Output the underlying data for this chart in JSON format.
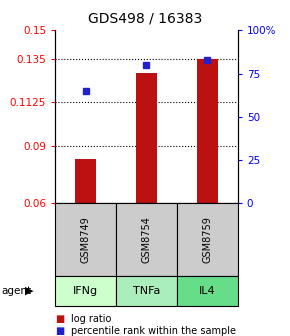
{
  "title": "GDS498 / 16383",
  "samples": [
    "GSM8749",
    "GSM8754",
    "GSM8759"
  ],
  "agents": [
    "IFNg",
    "TNFa",
    "IL4"
  ],
  "bar_values": [
    0.083,
    0.128,
    0.135
  ],
  "percentile_values": [
    65,
    80,
    83
  ],
  "bar_baseline": 0.06,
  "ylim_left": [
    0.06,
    0.15
  ],
  "ylim_right": [
    0,
    100
  ],
  "yticks_left": [
    0.06,
    0.09,
    0.1125,
    0.135,
    0.15
  ],
  "ytick_labels_left": [
    "0.06",
    "0.09",
    "0.1125",
    "0.135",
    "0.15"
  ],
  "yticks_right": [
    0,
    25,
    50,
    75,
    100
  ],
  "ytick_labels_right": [
    "0",
    "25",
    "50",
    "75",
    "100%"
  ],
  "grid_ticks": [
    0.09,
    0.1125,
    0.135
  ],
  "bar_color": "#bb1111",
  "dot_color": "#2222cc",
  "agent_colors": [
    "#ccffcc",
    "#aaeebb",
    "#66dd88"
  ],
  "sample_box_color": "#cccccc",
  "legend_bar_label": "log ratio",
  "legend_dot_label": "percentile rank within the sample",
  "title_fontsize": 10,
  "tick_fontsize": 7.5,
  "bar_width": 0.35,
  "fig_bg": "#ffffff"
}
